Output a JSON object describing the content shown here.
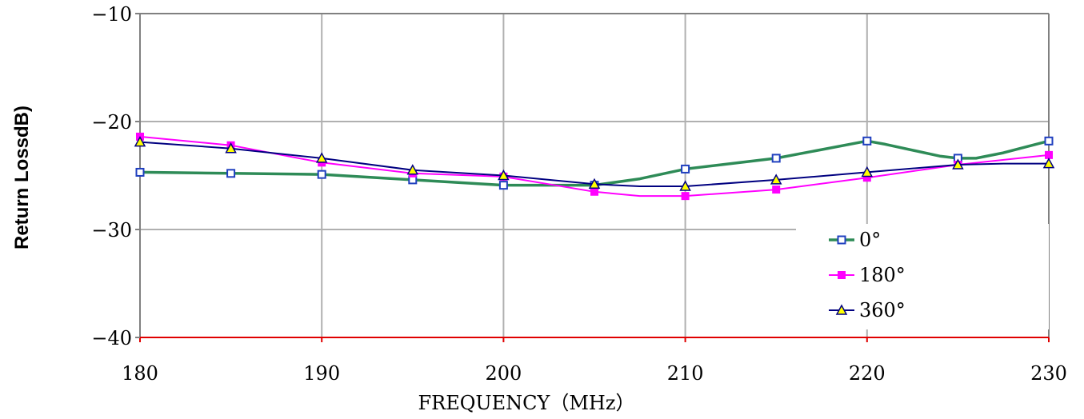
{
  "chart_data": {
    "type": "line",
    "title": "",
    "xlabel": "FREQUENCY（MHz）",
    "ylabel": "Return LossdB)",
    "xlim": [
      180,
      230
    ],
    "ylim": [
      -40,
      -10
    ],
    "x_ticks": [
      180,
      190,
      200,
      210,
      220,
      230
    ],
    "x_tick_labels": [
      "180",
      "190",
      "200",
      "210",
      "220",
      "230"
    ],
    "y_ticks": [
      -40,
      -30,
      -20,
      -10
    ],
    "y_tick_labels": [
      "−40",
      "−30",
      "−20",
      "−10"
    ],
    "grid": true,
    "legend_position": "right",
    "colors": {
      "series_0": "#2e8b57",
      "series_0_marker_edge": "#1f3fbf",
      "series_0_marker_fill": "#ffffff",
      "series_180": "#ff00ff",
      "series_360": "#000080",
      "series_360_marker_fill": "#ffff00",
      "axis_bottom": "#e00000",
      "grid": "#b0b0b0",
      "frame": "#808080"
    },
    "series": [
      {
        "name": "0°",
        "marker": "open-square",
        "x": [
          180,
          185,
          190,
          195,
          200,
          205,
          207.5,
          210,
          212.5,
          215,
          217.5,
          220,
          221,
          224,
          225,
          226,
          227.5,
          230
        ],
        "y": [
          -24.7,
          -24.8,
          -24.9,
          -25.4,
          -25.9,
          -25.9,
          -25.3,
          -24.4,
          -23.9,
          -23.4,
          -22.6,
          -21.8,
          -22.1,
          -23.2,
          -23.4,
          -23.4,
          -22.9,
          -21.8
        ],
        "marker_x": [
          180,
          185,
          190,
          195,
          200,
          205,
          210,
          215,
          220,
          225,
          230
        ],
        "marker_y": [
          -24.7,
          -24.8,
          -24.9,
          -25.4,
          -25.9,
          -25.9,
          -24.4,
          -23.4,
          -21.8,
          -23.4,
          -21.8
        ]
      },
      {
        "name": "180°",
        "marker": "filled-square",
        "x": [
          180,
          185,
          190,
          195,
          200,
          205,
          207.5,
          210,
          215,
          220,
          225,
          230
        ],
        "y": [
          -21.4,
          -22.2,
          -23.8,
          -24.8,
          -25.1,
          -26.5,
          -26.9,
          -26.9,
          -26.3,
          -25.2,
          -24.0,
          -23.1
        ],
        "marker_x": [
          180,
          185,
          190,
          195,
          200,
          205,
          210,
          215,
          220,
          225,
          230
        ],
        "marker_y": [
          -21.4,
          -22.2,
          -23.8,
          -24.8,
          -25.1,
          -26.5,
          -26.9,
          -26.3,
          -25.2,
          -24.0,
          -23.1
        ]
      },
      {
        "name": "360°",
        "marker": "triangle",
        "x": [
          180,
          185,
          190,
          195,
          200,
          205,
          207.5,
          210,
          215,
          220,
          225,
          227.5,
          230
        ],
        "y": [
          -21.9,
          -22.5,
          -23.4,
          -24.5,
          -25.0,
          -25.8,
          -26.0,
          -26.0,
          -25.4,
          -24.7,
          -24.0,
          -23.9,
          -23.9
        ],
        "marker_x": [
          180,
          185,
          190,
          195,
          200,
          205,
          210,
          215,
          220,
          225,
          230
        ],
        "marker_y": [
          -21.9,
          -22.5,
          -23.4,
          -24.5,
          -25.0,
          -25.8,
          -26.0,
          -25.4,
          -24.7,
          -24.0,
          -23.9
        ]
      }
    ]
  }
}
